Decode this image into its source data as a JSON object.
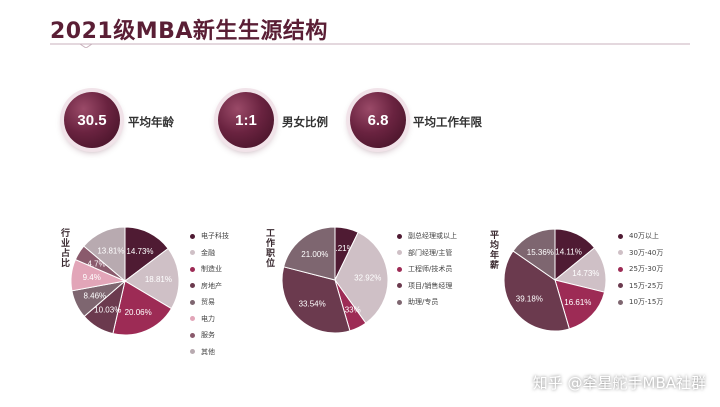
{
  "title": "2021级MBA新生生源结构",
  "stats": [
    {
      "value": "30.5",
      "label": "平均年龄"
    },
    {
      "value": "1:1",
      "label": "男女比例"
    },
    {
      "value": "6.8",
      "label": "平均工作年限"
    }
  ],
  "watermark": "知乎 @牵星舵手MBA社群",
  "colors": {
    "accent": "#5a1e35",
    "rule": "#c9b1bc"
  },
  "chart_data": [
    {
      "type": "pie",
      "title": "行业占比",
      "categories": [
        "电子科技",
        "金融",
        "制造业",
        "房地产",
        "贸易",
        "电力",
        "服务",
        "其他"
      ],
      "values": [
        14.73,
        18.81,
        20.06,
        10.03,
        8.46,
        9.4,
        4.7,
        13.81
      ],
      "labels": [
        "14.73%",
        "18.81%",
        "20.06%",
        "10.03%",
        "8.46%",
        "9.4%",
        "4.7%",
        "13.81%"
      ],
      "colors": [
        "#4f1b33",
        "#cfc0c6",
        "#9d2b55",
        "#6b3a4e",
        "#7e6670",
        "#e2a5b8",
        "#8a5a6c",
        "#b8aab0"
      ],
      "legend": "right"
    },
    {
      "type": "pie",
      "title": "工作职位",
      "categories": [
        "副总经理或以上",
        "部门经理/主管",
        "工程师/技术员",
        "项目/销售经理",
        "助理/专员"
      ],
      "values": [
        7.21,
        32.92,
        5.33,
        33.54,
        21.0
      ],
      "labels": [
        "7.21%",
        "32.92%",
        "5.33%",
        "33.54%",
        "21.00%"
      ],
      "colors": [
        "#4f1b33",
        "#cfc0c6",
        "#9d2b55",
        "#6b3a4e",
        "#7e6670"
      ],
      "legend": "right"
    },
    {
      "type": "pie",
      "title": "平均年薪",
      "categories": [
        "40万以上",
        "30万-40万",
        "25万-30万",
        "15万-25万",
        "10万-15万"
      ],
      "values": [
        14.11,
        14.73,
        16.61,
        39.18,
        15.36
      ],
      "labels": [
        "14.11%",
        "14.73%",
        "16.61%",
        "39.18%",
        "15.36%"
      ],
      "colors": [
        "#4f1b33",
        "#cfc0c6",
        "#9d2b55",
        "#6b3a4e",
        "#7e6670"
      ],
      "legend": "right"
    }
  ]
}
